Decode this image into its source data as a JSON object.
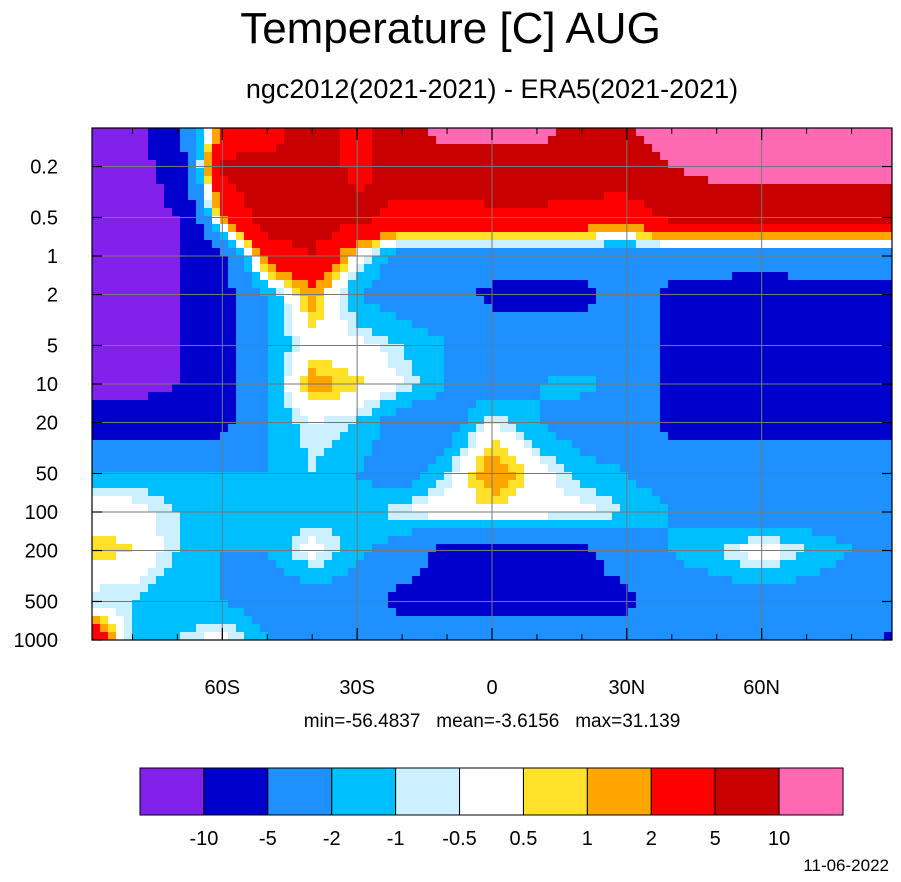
{
  "chart_data": {
    "type": "heatmap",
    "title": "Temperature [C] AUG",
    "subtitle": "ngc2012(2021-2021) - ERA5(2021-2021)",
    "x_ticks": [
      {
        "value": -60,
        "label": "60S"
      },
      {
        "value": -30,
        "label": "30S"
      },
      {
        "value": 0,
        "label": "0"
      },
      {
        "value": 30,
        "label": "30N"
      },
      {
        "value": 60,
        "label": "60N"
      }
    ],
    "x_minor_step": 10,
    "xlim": [
      -89,
      89
    ],
    "y_ticks": [
      {
        "value": 0.2,
        "label": "0.2"
      },
      {
        "value": 0.5,
        "label": "0.5"
      },
      {
        "value": 1,
        "label": "1"
      },
      {
        "value": 2,
        "label": "2"
      },
      {
        "value": 5,
        "label": "5"
      },
      {
        "value": 10,
        "label": "10"
      },
      {
        "value": 20,
        "label": "20"
      },
      {
        "value": 50,
        "label": "50"
      },
      {
        "value": 100,
        "label": "100"
      },
      {
        "value": 200,
        "label": "200"
      },
      {
        "value": 500,
        "label": "500"
      },
      {
        "value": 1000,
        "label": "1000"
      }
    ],
    "ylim": [
      0.1,
      1000
    ],
    "y_scale": "log",
    "y_reversed": true,
    "grid": true,
    "stats": {
      "min": "-56.4837",
      "mean": "-3.6156",
      "max": "31.139"
    },
    "stats_labels": {
      "min": "min=",
      "mean": "mean=",
      "max": "max="
    },
    "colorbar": {
      "colors": [
        "#8121ea",
        "#0000cd",
        "#1e90ff",
        "#00bfff",
        "#cdf0ff",
        "#ffffff",
        "#ffe12a",
        "#ffa500",
        "#ff0000",
        "#c80000",
        "#ff69b4"
      ],
      "tick_labels": [
        "-10",
        "-5",
        "-2",
        "-1",
        "-0.5",
        "0.5",
        "1",
        "2",
        "5",
        "10"
      ],
      "placement": "bottom"
    },
    "color_levels": [
      {
        "value": -10,
        "color": "#8121ea"
      },
      {
        "value": -7,
        "color": "#0000cd"
      },
      {
        "value": -3,
        "color": "#1e90ff"
      },
      {
        "value": -1.5,
        "color": "#00bfff"
      },
      {
        "value": -0.7,
        "color": "#cdf0ff"
      },
      {
        "value": 0,
        "color": "#ffffff"
      },
      {
        "value": 0.7,
        "color": "#ffe12a"
      },
      {
        "value": 1.5,
        "color": "#ffa500"
      },
      {
        "value": 3,
        "color": "#ff0000"
      },
      {
        "value": 7,
        "color": "#c80000"
      },
      {
        "value": 12,
        "color": "#ff69b4"
      }
    ],
    "field_grid": {
      "lat": [
        -89,
        -80,
        -70,
        -60,
        -50,
        -40,
        -30,
        -20,
        -10,
        0,
        10,
        20,
        30,
        40,
        50,
        60,
        70,
        80,
        89
      ],
      "levels_hPa": [
        0.1,
        0.2,
        0.5,
        1,
        2,
        5,
        10,
        20,
        50,
        100,
        200,
        500,
        1000
      ],
      "values": [
        [
          -12,
          -12,
          -5,
          2,
          3,
          7,
          4,
          8,
          12,
          12,
          12,
          7,
          10,
          12,
          12,
          12,
          12,
          12,
          12
        ],
        [
          -12,
          -12,
          -8,
          6,
          6,
          7,
          4,
          7,
          7,
          8,
          8,
          7,
          7,
          10,
          12,
          12,
          12,
          12,
          12
        ],
        [
          -12,
          -12,
          -10,
          2,
          7,
          7,
          6,
          4,
          4,
          4,
          4,
          4,
          3,
          6,
          6,
          6,
          6,
          6,
          6
        ],
        [
          -12,
          -12,
          -10,
          -6,
          3,
          5,
          0,
          -3,
          -3,
          -3,
          -3,
          -3,
          -3,
          -3,
          -3,
          -3,
          -3,
          -3,
          -3
        ],
        [
          -12,
          -12,
          -10,
          -6,
          -2,
          1.5,
          -2,
          -3,
          -3,
          -6,
          -6,
          -6,
          -3,
          -6,
          -6,
          -8,
          -6,
          -6,
          -6
        ],
        [
          -12,
          -12,
          -10,
          -6,
          -2,
          0,
          -0.2,
          -1,
          -2,
          -3,
          -3,
          -3,
          -3,
          -6,
          -6,
          -6,
          -6,
          -6,
          -6
        ],
        [
          -12,
          -12,
          -10,
          -6,
          -2,
          1.5,
          0.7,
          -0.5,
          -2,
          -3,
          -2,
          -1.5,
          -3,
          -6,
          -6,
          -6,
          -6,
          -6,
          -6
        ],
        [
          -7,
          -7,
          -7,
          -6,
          -2,
          -0.5,
          -1,
          -3,
          -3,
          -0.3,
          -2,
          -3,
          -3,
          -6,
          -6,
          -6,
          -6,
          -6,
          -6
        ],
        [
          -1.5,
          -1.5,
          -2,
          -2,
          -2,
          -1,
          -2,
          -3,
          -1,
          2,
          0,
          -1.5,
          -2,
          -3,
          -3,
          -3,
          -3,
          -3,
          -3
        ],
        [
          0,
          0,
          -1,
          -2,
          -1.5,
          -1.5,
          -1.5,
          -0.5,
          0.3,
          0.2,
          0.2,
          0,
          -1,
          -2,
          -3,
          -3,
          -3,
          -3,
          -3
        ],
        [
          1,
          0.5,
          -1,
          -2,
          -2,
          0,
          -1.5,
          -3,
          -6,
          -6,
          -6,
          -6,
          -3,
          -2,
          -1,
          0.2,
          -1,
          -2,
          -2
        ],
        [
          -1,
          -1,
          -2,
          -2,
          -3,
          -3,
          -3,
          -6,
          -6,
          -6,
          -6,
          -6,
          -6,
          -3,
          -3,
          -3,
          -3,
          -3,
          -3
        ],
        [
          4,
          -1,
          -1,
          0,
          -2,
          -3,
          -3,
          -3,
          -3,
          -3,
          -3,
          -3,
          -3,
          -3,
          -3,
          -3,
          -3,
          -3,
          -6
        ]
      ]
    }
  }
}
